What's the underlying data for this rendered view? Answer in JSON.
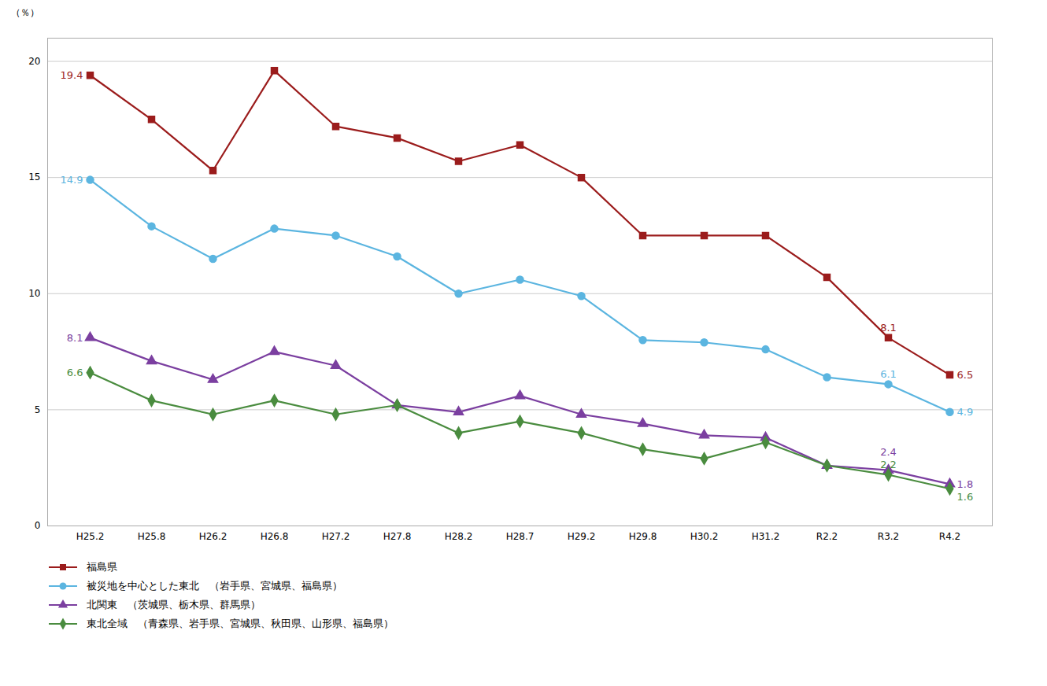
{
  "chart_data": {
    "type": "line",
    "categories": [
      "H25.2",
      "H25.8",
      "H26.2",
      "H26.8",
      "H27.2",
      "H27.8",
      "H28.2",
      "H28.7",
      "H29.2",
      "H29.8",
      "H30.2",
      "H31.2",
      "R2.2",
      "R3.2",
      "R4.2"
    ],
    "series": [
      {
        "name": "福島県",
        "color": "#9b1c1c",
        "marker": "square",
        "values": [
          19.4,
          17.5,
          15.3,
          19.6,
          17.2,
          16.7,
          15.7,
          16.4,
          15.0,
          12.5,
          12.5,
          12.5,
          10.7,
          8.1,
          6.5
        ]
      },
      {
        "name": "被災地を中心とした東北　（岩手県、宮城県、福島県）",
        "color": "#5bb5e0",
        "marker": "circle",
        "values": [
          14.9,
          12.9,
          11.5,
          12.8,
          12.5,
          11.6,
          10.0,
          10.6,
          9.9,
          8.0,
          7.9,
          7.6,
          6.4,
          6.1,
          4.9
        ]
      },
      {
        "name": "北関東　（茨城県、栃木県、群馬県）",
        "color": "#7b3fa0",
        "marker": "triangle",
        "values": [
          8.1,
          7.1,
          6.3,
          7.5,
          6.9,
          5.2,
          4.9,
          5.6,
          4.8,
          4.4,
          3.9,
          3.8,
          2.6,
          2.4,
          1.8
        ]
      },
      {
        "name": "東北全域　（青森県、岩手県、宮城県、秋田県、山形県、福島県）",
        "color": "#4a8c3f",
        "marker": "diamond",
        "values": [
          6.6,
          5.4,
          4.8,
          5.4,
          4.8,
          5.2,
          4.0,
          4.5,
          4.0,
          3.3,
          2.9,
          3.6,
          2.6,
          2.2,
          1.6
        ]
      }
    ],
    "ylim": [
      0,
      21
    ],
    "yticks": [
      0,
      5,
      10,
      15,
      20
    ],
    "ylabel": "（％）",
    "grid": true,
    "legend": "bottom",
    "annotations": [
      {
        "x": "H25.2",
        "y": 19.4,
        "text": "19.4",
        "color": "#9b1c1c"
      },
      {
        "x": "H25.2",
        "y": 14.9,
        "text": "14.9",
        "color": "#5bb5e0"
      },
      {
        "x": "H25.2",
        "y": 8.1,
        "text": "8.1",
        "color": "#7b3fa0"
      },
      {
        "x": "H25.2",
        "y": 6.6,
        "text": "6.6",
        "color": "#4a8c3f"
      },
      {
        "x": "R3.2",
        "y": 8.1,
        "text": "8.1",
        "color": "#9b1c1c"
      },
      {
        "x": "R3.2",
        "y": 6.1,
        "text": "6.1",
        "color": "#5bb5e0"
      },
      {
        "x": "R3.2",
        "y": 2.4,
        "text": "2.4",
        "color": "#7b3fa0"
      },
      {
        "x": "R3.2",
        "y": 2.2,
        "text": "2.2",
        "color": "#4a8c3f"
      },
      {
        "x": "R4.2",
        "y": 6.5,
        "text": "6.5",
        "color": "#9b1c1c"
      },
      {
        "x": "R4.2",
        "y": 4.9,
        "text": "4.9",
        "color": "#5bb5e0"
      },
      {
        "x": "R4.2",
        "y": 1.8,
        "text": "1.8",
        "color": "#7b3fa0"
      },
      {
        "x": "R4.2",
        "y": 1.6,
        "text": "1.6",
        "color": "#4a8c3f"
      }
    ]
  }
}
